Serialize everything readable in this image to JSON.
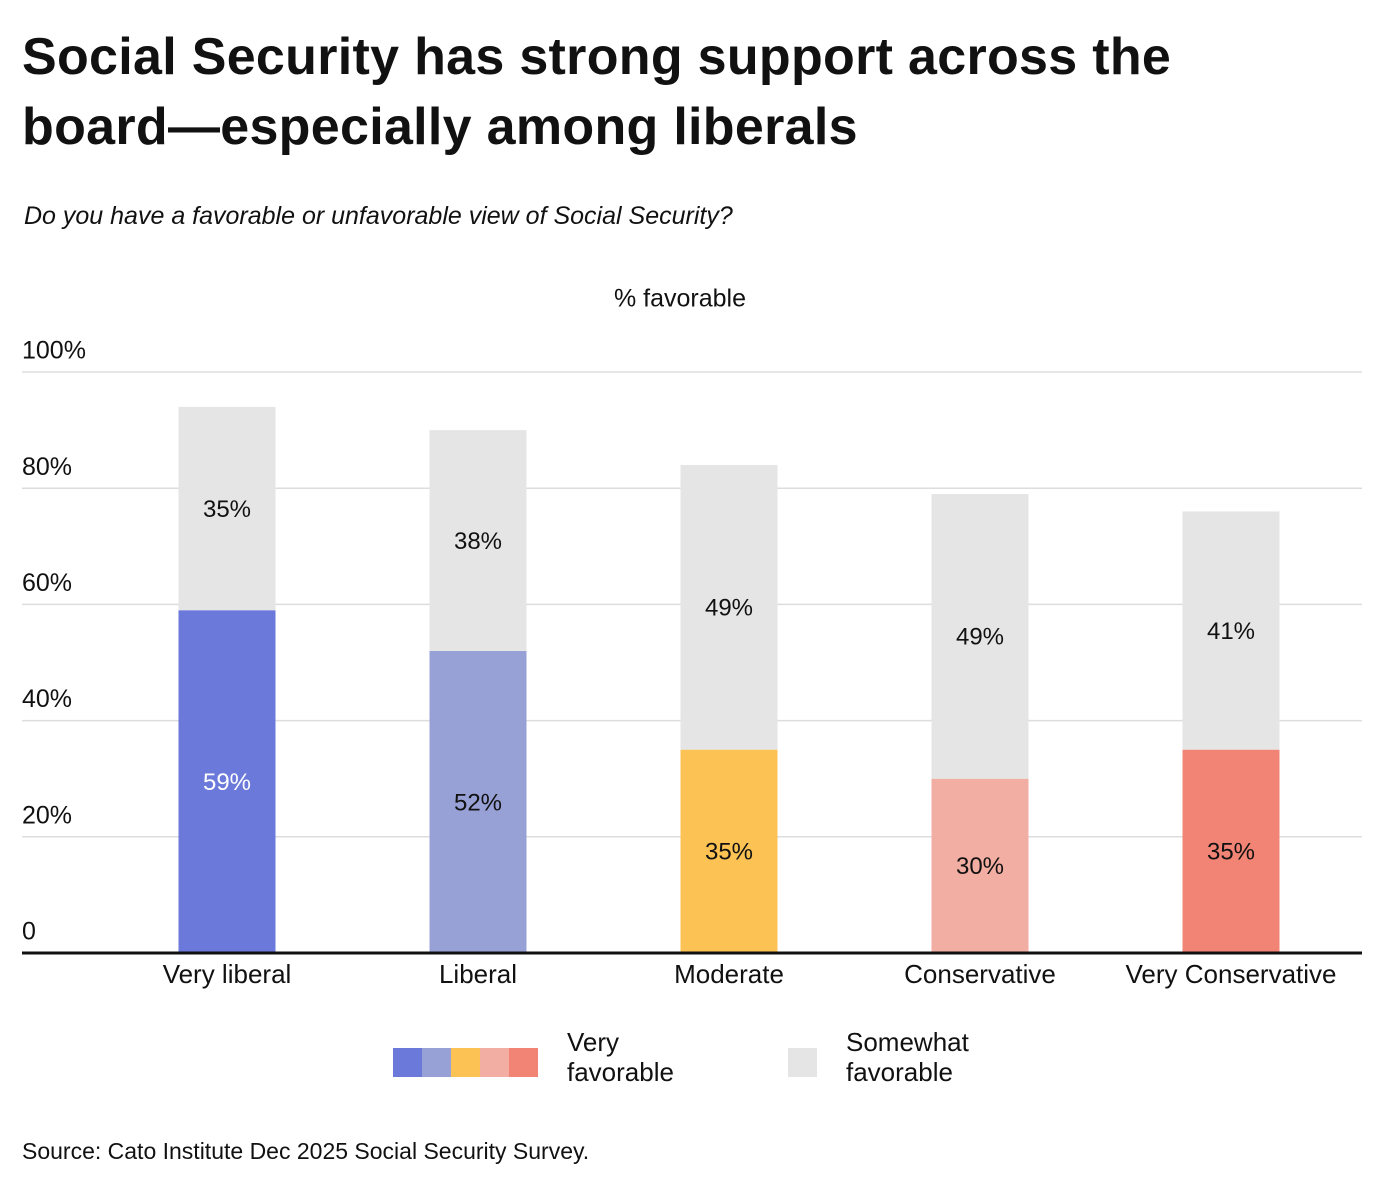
{
  "chart_data": {
    "type": "stacked_bar",
    "title": "Social Security has strong support across the board—especially among liberals",
    "subtitle": "Do you have a favorable or unfavorable view of Social Security?",
    "y_label": "% favorable",
    "source": "Source: Cato Institute Dec 2025 Social Security Survey.",
    "categories": [
      "Very liberal",
      "Liberal",
      "Moderate",
      "Conservative",
      "Very Conservative"
    ],
    "series": [
      {
        "name": "Very favorable",
        "colors": [
          "#6b79db",
          "#98a1d6",
          "#fcc254",
          "#f2aea3",
          "#f28475"
        ],
        "values": [
          59,
          52,
          35,
          30,
          35
        ],
        "value_labels": [
          "59%",
          "52%",
          "35%",
          "30%",
          "35%"
        ]
      },
      {
        "name": "Somewhat favorable",
        "color": "#e5e5e5",
        "values": [
          35,
          38,
          49,
          49,
          41
        ],
        "value_labels": [
          "35%",
          "38%",
          "49%",
          "49%",
          "41%"
        ]
      }
    ],
    "ylim": [
      0,
      100
    ],
    "yticks": [
      0,
      {
        "value": 20,
        "label": "20%"
      },
      {
        "value": 40,
        "label": "40%"
      },
      {
        "value": 60,
        "label": "60%"
      },
      {
        "value": 80,
        "label": "80%"
      },
      {
        "value": 100,
        "label": "100%"
      }
    ],
    "grid": true
  }
}
